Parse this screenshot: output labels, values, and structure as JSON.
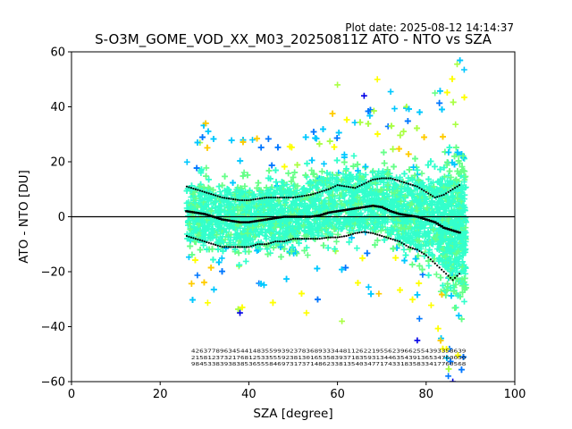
{
  "plot_date": "Plot date: 2025-08-12 14:14:37",
  "chart_data": {
    "type": "scatter",
    "title": "S-O3M_GOME_VOD_XX_M03_20250811Z ATO - NTO vs SZA",
    "xlabel": "SZA [degree]",
    "ylabel": "ATO - NTO [DU]",
    "xlim": [
      0,
      100
    ],
    "ylim": [
      -60,
      60
    ],
    "xticks": [
      0,
      20,
      40,
      60,
      80,
      100
    ],
    "yticks": [
      -60,
      -40,
      -20,
      0,
      20,
      40,
      60
    ],
    "grid": false,
    "legend": "none",
    "zero_line": 0,
    "colors": {
      "scatter_palette": [
        "#0000e6",
        "#0077ff",
        "#00c8ff",
        "#33ffcc",
        "#66ff88",
        "#aaff44",
        "#ffff00",
        "#ffcc00",
        "#ff9900"
      ],
      "median": "#000000",
      "spread": "#000000"
    },
    "point_cloud": {
      "x_range": [
        26,
        89
      ],
      "core_band": [
        {
          "sza": 26,
          "lo": -20,
          "hi": 22
        },
        {
          "sza": 30,
          "lo": -22,
          "hi": 24
        },
        {
          "sza": 40,
          "lo": -24,
          "hi": 22
        },
        {
          "sza": 50,
          "lo": -22,
          "hi": 24
        },
        {
          "sza": 60,
          "lo": -18,
          "hi": 28
        },
        {
          "sza": 70,
          "lo": -18,
          "hi": 30
        },
        {
          "sza": 80,
          "lo": -28,
          "hi": 28
        },
        {
          "sza": 85,
          "lo": -40,
          "hi": 35
        },
        {
          "sza": 88,
          "lo": -50,
          "hi": 40
        }
      ],
      "notable_points": [
        {
          "x": 87,
          "y": 55.5
        },
        {
          "x": 72,
          "y": 45.5
        },
        {
          "x": 69,
          "y": 50
        },
        {
          "x": 60,
          "y": 48
        },
        {
          "x": 66,
          "y": 44
        },
        {
          "x": 82,
          "y": 45
        },
        {
          "x": 38,
          "y": -35
        },
        {
          "x": 53,
          "y": -35
        },
        {
          "x": 61,
          "y": -38
        },
        {
          "x": 78,
          "y": -45
        },
        {
          "x": 85,
          "y": -58
        },
        {
          "x": 86,
          "y": -60
        }
      ]
    },
    "series": [
      {
        "role": "median",
        "x": [
          26,
          28,
          30,
          32,
          34,
          36,
          38,
          40,
          42,
          44,
          46,
          48,
          50,
          52,
          54,
          56,
          58,
          60,
          62,
          64,
          66,
          68,
          70,
          72,
          74,
          76,
          78,
          80,
          82,
          84,
          86,
          88
        ],
        "y": [
          2,
          1.5,
          1,
          0,
          -1,
          -1.5,
          -2,
          -2,
          -1.5,
          -1,
          -0.5,
          0,
          0,
          0,
          0,
          0.5,
          1.5,
          2,
          2.5,
          3,
          3.5,
          4,
          3.5,
          2,
          1,
          0.5,
          0,
          -1,
          -2,
          -4,
          -5,
          -6
        ]
      },
      {
        "role": "upper-spread",
        "x": [
          26,
          28,
          30,
          32,
          34,
          36,
          38,
          40,
          42,
          44,
          46,
          48,
          50,
          52,
          54,
          56,
          58,
          60,
          62,
          64,
          66,
          68,
          70,
          72,
          74,
          76,
          78,
          80,
          82,
          84,
          86,
          88
        ],
        "y": [
          11,
          10,
          9,
          8,
          7,
          6.5,
          6,
          6,
          6.5,
          7,
          7,
          7,
          7,
          7.5,
          8,
          9,
          10,
          11.5,
          11,
          10.5,
          12,
          13.5,
          14,
          14,
          13,
          12,
          11,
          9,
          7,
          8,
          10,
          12
        ]
      },
      {
        "role": "lower-spread",
        "x": [
          26,
          28,
          30,
          32,
          34,
          36,
          38,
          40,
          42,
          44,
          46,
          48,
          50,
          52,
          54,
          56,
          58,
          60,
          62,
          64,
          66,
          68,
          70,
          72,
          74,
          76,
          78,
          80,
          82,
          84,
          86,
          88
        ],
        "y": [
          -7,
          -8,
          -9,
          -10,
          -11,
          -11,
          -11,
          -11,
          -10,
          -10,
          -9,
          -9,
          -8,
          -8,
          -8,
          -8,
          -7.5,
          -7.5,
          -7,
          -6,
          -5.5,
          -6,
          -7,
          -8,
          -9,
          -11,
          -12,
          -14,
          -17,
          -20,
          -23,
          -20
        ]
      }
    ],
    "bin_labels": {
      "rows": [
        {
          "y": -49.5,
          "text": "4263778963454414835599392378368933344811262219556239662554393358639"
        },
        {
          "y": -51.8,
          "text": "2158123732176812533555923813016535839371835931344635439136534760050"
        },
        {
          "y": -54.1,
          "text": "9845338393838536555846973173714862338135403477174331835833417760568"
        }
      ],
      "x_start": 27,
      "x_end": 89
    }
  }
}
